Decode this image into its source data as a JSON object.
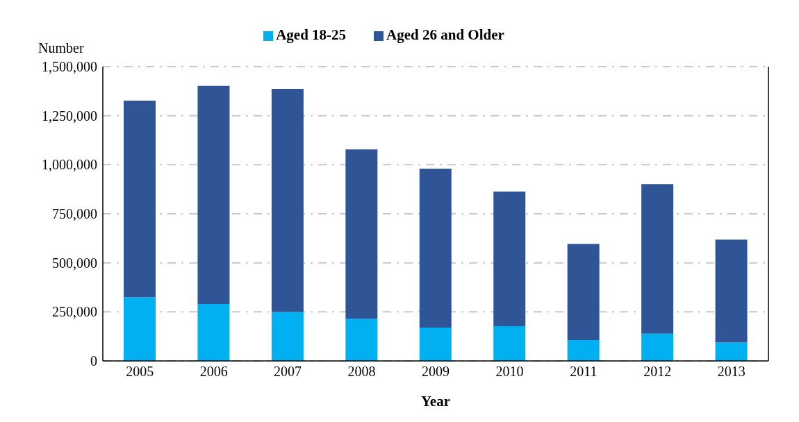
{
  "chart_data": {
    "type": "bar",
    "stacked": true,
    "ylabel": "Number",
    "xlabel": "Year",
    "categories": [
      "2005",
      "2006",
      "2007",
      "2008",
      "2009",
      "2010",
      "2011",
      "2012",
      "2013"
    ],
    "series": [
      {
        "name": "Aged 18-25",
        "color": "#00b0f0",
        "values": [
          324000,
          290000,
          249000,
          215000,
          170000,
          177000,
          106000,
          139000,
          94000
        ]
      },
      {
        "name": "Aged 26 and Older",
        "color": "#2f5597",
        "values": [
          1003000,
          1112000,
          1138000,
          863000,
          810000,
          686000,
          490000,
          762000,
          524000
        ]
      }
    ],
    "ylim": [
      0,
      1500000
    ],
    "yticks": [
      0,
      {
        "value": 250000,
        "label": "250,000"
      },
      {
        "value": 500000,
        "label": "500,000"
      },
      {
        "value": 750000,
        "label": "750,000"
      },
      {
        "value": 1000000,
        "label": "1,000,000"
      },
      {
        "value": 1250000,
        "label": "1,250,000"
      },
      {
        "value": 1500000,
        "label": "1,500,000"
      }
    ],
    "grid": "y",
    "legend": "top"
  }
}
